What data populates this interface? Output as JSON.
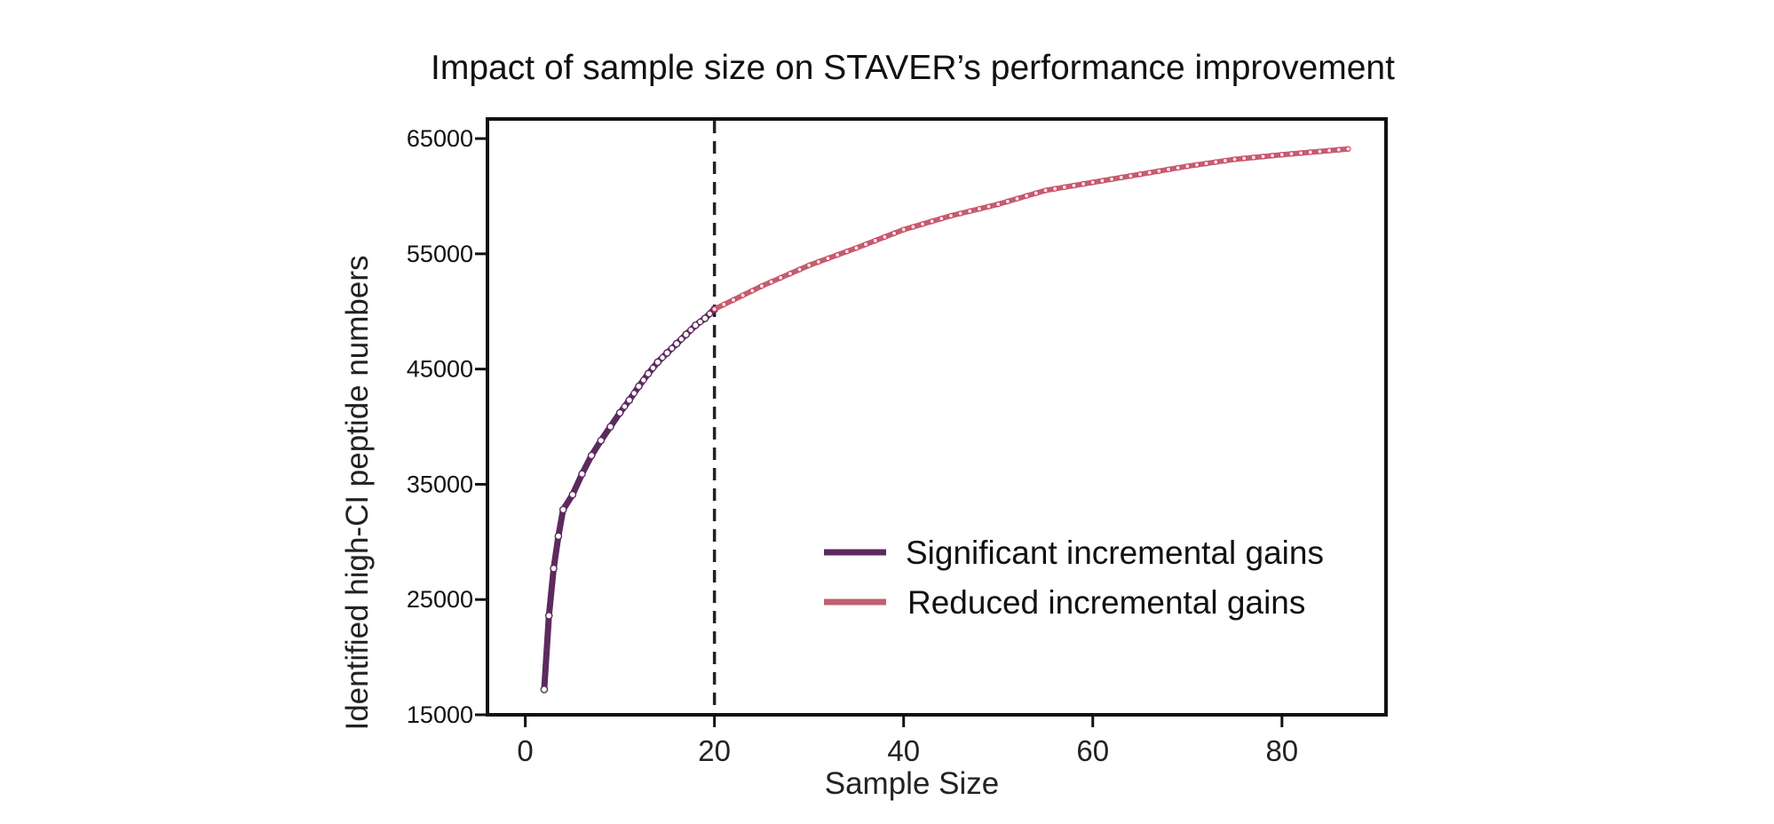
{
  "chart_data": {
    "type": "line",
    "title": "Impact of sample size on STAVER’s performance improvement",
    "xlabel": "Sample Size",
    "ylabel": "Identified high-CI peptide numbers",
    "xlim": [
      -4,
      91
    ],
    "ylim": [
      15000,
      66700
    ],
    "x_ticks": [
      0,
      20,
      40,
      60,
      80
    ],
    "y_ticks": [
      15000,
      25000,
      35000,
      45000,
      55000,
      65000
    ],
    "threshold_x": 20,
    "legend_position": "bottom-right",
    "series": [
      {
        "name": "Significant incremental gains",
        "color": "#5c2a5e",
        "x": [
          2,
          2.5,
          3,
          3.5,
          4,
          5,
          6,
          7,
          8,
          9,
          10,
          11,
          12,
          13,
          14,
          15,
          16,
          17,
          18,
          19,
          20
        ],
        "y": [
          17200,
          23600,
          27700,
          30500,
          32800,
          34100,
          35900,
          37500,
          38800,
          40000,
          41200,
          42300,
          43500,
          44600,
          45600,
          46400,
          47200,
          48000,
          48800,
          49400,
          50200
        ]
      },
      {
        "name": "Reduced incremental gains",
        "color": "#c06070",
        "x": [
          20,
          25,
          30,
          35,
          40,
          45,
          50,
          55,
          60,
          65,
          70,
          75,
          80,
          87
        ],
        "y": [
          50200,
          52200,
          54000,
          55500,
          57100,
          58300,
          59300,
          60500,
          61200,
          61900,
          62600,
          63200,
          63600,
          64100
        ]
      }
    ]
  }
}
